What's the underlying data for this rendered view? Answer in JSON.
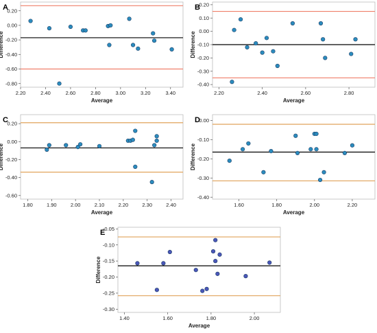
{
  "colors": {
    "point_fill": "#2b8cbe",
    "point_fill_e": "#4a56b8",
    "point_stroke": "#1f3f66",
    "mean_line": "#000000",
    "limit_red": "#ef7f6a",
    "limit_orange": "#e0a25a"
  },
  "chart_data": [
    {
      "panel": "A",
      "type": "scatter",
      "xlabel": "Average",
      "ylabel": "Difference",
      "xlim": [
        2.2,
        3.5
      ],
      "ylim": [
        -0.85,
        0.32
      ],
      "xticks": [
        "2.20",
        "2.40",
        "2.60",
        "2.80",
        "3.00",
        "3.20",
        "3.40"
      ],
      "yticks": [
        "0.20",
        "0.00",
        "-0.20",
        "-0.40",
        "-0.60",
        "-0.80"
      ],
      "mean": -0.17,
      "upper_loa": 0.27,
      "lower_loa": -0.6,
      "loa_color": "limit_red",
      "points": [
        [
          2.28,
          0.06
        ],
        [
          2.43,
          -0.04
        ],
        [
          2.51,
          -0.8
        ],
        [
          2.6,
          -0.02
        ],
        [
          2.7,
          -0.07
        ],
        [
          2.72,
          -0.07
        ],
        [
          2.9,
          -0.01
        ],
        [
          2.91,
          -0.27
        ],
        [
          2.92,
          0.0
        ],
        [
          3.07,
          0.09
        ],
        [
          3.1,
          -0.27
        ],
        [
          3.14,
          -0.32
        ],
        [
          3.26,
          -0.11
        ],
        [
          3.27,
          -0.21
        ],
        [
          3.41,
          -0.33
        ]
      ]
    },
    {
      "panel": "B",
      "type": "scatter",
      "xlabel": "Average",
      "ylabel": "Difference",
      "xlim": [
        2.17,
        2.92
      ],
      "ylim": [
        -0.42,
        0.22
      ],
      "xticks": [
        "2.20",
        "2.40",
        "2.60",
        "2.80"
      ],
      "yticks": [
        "0.20",
        "0.10",
        "0.00",
        "-0.10",
        "-0.20",
        "-0.30",
        "-0.40"
      ],
      "mean": -0.1,
      "upper_loa": 0.15,
      "lower_loa": -0.35,
      "loa_color": "limit_red",
      "points": [
        [
          2.26,
          -0.38
        ],
        [
          2.27,
          0.01
        ],
        [
          2.3,
          0.09
        ],
        [
          2.33,
          -0.12
        ],
        [
          2.37,
          -0.09
        ],
        [
          2.4,
          -0.16
        ],
        [
          2.42,
          -0.05
        ],
        [
          2.45,
          -0.15
        ],
        [
          2.47,
          -0.26
        ],
        [
          2.54,
          0.06
        ],
        [
          2.67,
          0.06
        ],
        [
          2.68,
          -0.06
        ],
        [
          2.69,
          -0.2
        ],
        [
          2.81,
          -0.17
        ],
        [
          2.83,
          -0.06
        ]
      ]
    },
    {
      "panel": "C",
      "type": "scatter",
      "xlabel": "Average",
      "ylabel": "Difference",
      "xlim": [
        1.77,
        2.45
      ],
      "ylim": [
        -0.64,
        0.3
      ],
      "xticks": [
        "1.80",
        "1.90",
        "2.00",
        "2.10",
        "2.20",
        "2.30",
        "2.40"
      ],
      "yticks": [
        "0.20",
        "0.00",
        "-0.20",
        "-0.40",
        "-0.60"
      ],
      "mean": -0.07,
      "upper_loa": 0.21,
      "lower_loa": -0.34,
      "loa_color": "limit_orange",
      "points": [
        [
          1.88,
          -0.09
        ],
        [
          1.89,
          -0.04
        ],
        [
          1.96,
          -0.04
        ],
        [
          2.01,
          -0.06
        ],
        [
          2.02,
          -0.03
        ],
        [
          2.1,
          -0.05
        ],
        [
          2.22,
          0.01
        ],
        [
          2.23,
          0.01
        ],
        [
          2.24,
          0.02
        ],
        [
          2.25,
          0.12
        ],
        [
          2.25,
          -0.28
        ],
        [
          2.32,
          -0.45
        ],
        [
          2.33,
          -0.04
        ],
        [
          2.34,
          0.06
        ],
        [
          2.34,
          0.01
        ]
      ]
    },
    {
      "panel": "D",
      "type": "scatter",
      "xlabel": "Average",
      "ylabel": "Difference",
      "xlim": [
        1.46,
        2.32
      ],
      "ylim": [
        -0.41,
        0.03
      ],
      "xticks": [
        "1.60",
        "1.80",
        "2.00",
        "2.20"
      ],
      "yticks": [
        "0.00",
        "-0.10",
        "-0.20",
        "-0.30",
        "-0.40"
      ],
      "mean": -0.165,
      "upper_loa": -0.02,
      "lower_loa": -0.315,
      "loa_color": "limit_orange",
      "points": [
        [
          1.55,
          -0.21
        ],
        [
          1.62,
          -0.15
        ],
        [
          1.65,
          -0.12
        ],
        [
          1.73,
          -0.27
        ],
        [
          1.77,
          -0.16
        ],
        [
          1.9,
          -0.08
        ],
        [
          1.91,
          -0.17
        ],
        [
          1.98,
          -0.15
        ],
        [
          2.0,
          -0.07
        ],
        [
          2.01,
          -0.07
        ],
        [
          2.01,
          -0.15
        ],
        [
          2.03,
          -0.31
        ],
        [
          2.05,
          -0.27
        ],
        [
          2.16,
          -0.17
        ],
        [
          2.2,
          -0.13
        ]
      ]
    },
    {
      "panel": "E",
      "type": "scatter",
      "xlabel": "Average",
      "ylabel": "Difference",
      "xlim": [
        1.37,
        2.12
      ],
      "ylim": [
        -0.31,
        -0.045
      ],
      "xticks": [
        "1.40",
        "1.60",
        "1.80",
        "2.00"
      ],
      "yticks": [
        "-0.05",
        "-0.10",
        "-0.15",
        "-0.20",
        "-0.25",
        "-0.30"
      ],
      "mean": -0.165,
      "upper_loa": -0.075,
      "lower_loa": -0.258,
      "loa_color": "limit_orange",
      "points": [
        [
          1.46,
          -0.157
        ],
        [
          1.55,
          -0.24
        ],
        [
          1.58,
          -0.157
        ],
        [
          1.61,
          -0.122
        ],
        [
          1.73,
          -0.178
        ],
        [
          1.76,
          -0.243
        ],
        [
          1.78,
          -0.237
        ],
        [
          1.81,
          -0.12
        ],
        [
          1.82,
          -0.15
        ],
        [
          1.82,
          -0.085
        ],
        [
          1.83,
          -0.19
        ],
        [
          1.84,
          -0.13
        ],
        [
          1.96,
          -0.197
        ],
        [
          2.07,
          -0.155
        ]
      ]
    }
  ]
}
